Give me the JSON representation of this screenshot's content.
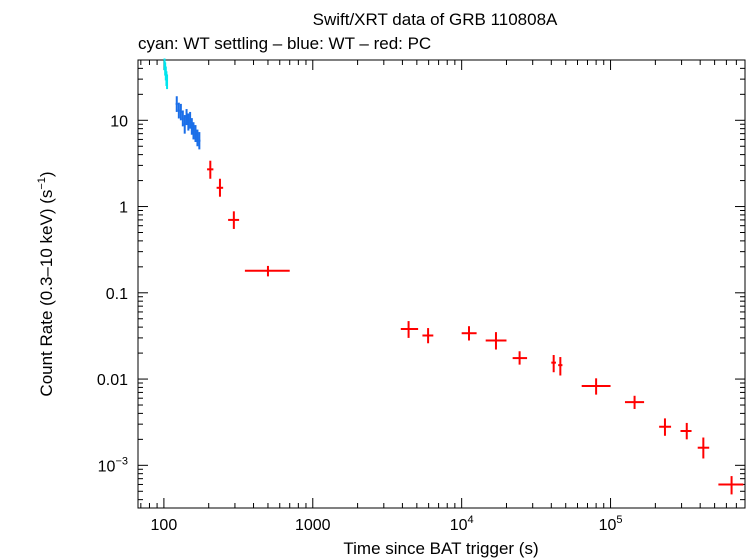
{
  "chart_data": {
    "type": "scatter",
    "title": "Swift/XRT data of GRB 110808A",
    "subtitle": "cyan: WT settling – blue: WT – red: PC",
    "xlabel": "Time since BAT trigger (s)",
    "ylabel_parts": [
      "Count Rate (0.3–10 keV) (s",
      "−1",
      ")"
    ],
    "xscale": "log",
    "yscale": "log",
    "xlim": [
      67,
      800000
    ],
    "ylim": [
      0.00032,
      50
    ],
    "x_ticks": [
      {
        "value": 100,
        "label": "100"
      },
      {
        "value": 1000,
        "label": "1000"
      },
      {
        "value": 10000,
        "base": "10",
        "exp": "4"
      },
      {
        "value": 100000,
        "base": "10",
        "exp": "5"
      }
    ],
    "y_ticks": [
      {
        "value": 10,
        "label": "10"
      },
      {
        "value": 1,
        "label": "1"
      },
      {
        "value": 0.1,
        "label": "0.1"
      },
      {
        "value": 0.01,
        "label": "0.01"
      },
      {
        "value": 0.001,
        "base": "10",
        "exp": "−3"
      }
    ],
    "series": [
      {
        "name": "WT settling",
        "color": "#00e5ee",
        "points": [
          {
            "x": 101,
            "xlo": 100.5,
            "xhi": 101.5,
            "y": 45,
            "ylo": 38,
            "yhi": 52
          },
          {
            "x": 102,
            "xlo": 101.5,
            "xhi": 102.5,
            "y": 40,
            "ylo": 33,
            "yhi": 47
          },
          {
            "x": 103,
            "xlo": 102.5,
            "xhi": 103.5,
            "y": 35,
            "ylo": 29,
            "yhi": 42
          },
          {
            "x": 104,
            "xlo": 103.5,
            "xhi": 104.5,
            "y": 31,
            "ylo": 25,
            "yhi": 37
          },
          {
            "x": 105,
            "xlo": 104.5,
            "xhi": 105.5,
            "y": 28,
            "ylo": 23,
            "yhi": 34
          }
        ]
      },
      {
        "name": "WT",
        "color": "#1a6ee8",
        "points": [
          {
            "x": 122,
            "xlo": 120,
            "xhi": 124,
            "y": 15.5,
            "ylo": 12.5,
            "yhi": 19
          },
          {
            "x": 126,
            "xlo": 124,
            "xhi": 128,
            "y": 13,
            "ylo": 10.5,
            "yhi": 16
          },
          {
            "x": 130,
            "xlo": 128,
            "xhi": 132,
            "y": 12.5,
            "ylo": 10,
            "yhi": 15.5
          },
          {
            "x": 134,
            "xlo": 132,
            "xhi": 136,
            "y": 10.5,
            "ylo": 8.5,
            "yhi": 13
          },
          {
            "x": 138,
            "xlo": 136,
            "xhi": 140,
            "y": 9,
            "ylo": 7,
            "yhi": 11.5
          },
          {
            "x": 142,
            "xlo": 140,
            "xhi": 144,
            "y": 11,
            "ylo": 8.8,
            "yhi": 13.5
          },
          {
            "x": 146,
            "xlo": 144,
            "xhi": 148,
            "y": 9.5,
            "ylo": 7.6,
            "yhi": 12
          },
          {
            "x": 150,
            "xlo": 148,
            "xhi": 152,
            "y": 10,
            "ylo": 8,
            "yhi": 12.5
          },
          {
            "x": 154,
            "xlo": 152,
            "xhi": 156,
            "y": 8.5,
            "ylo": 6.8,
            "yhi": 10.6
          },
          {
            "x": 158,
            "xlo": 156,
            "xhi": 160,
            "y": 7.5,
            "ylo": 6,
            "yhi": 9.5
          },
          {
            "x": 163,
            "xlo": 160,
            "xhi": 166,
            "y": 7,
            "ylo": 5.6,
            "yhi": 8.8
          },
          {
            "x": 168,
            "xlo": 166,
            "xhi": 170,
            "y": 6.2,
            "ylo": 5,
            "yhi": 7.8
          },
          {
            "x": 173,
            "xlo": 170,
            "xhi": 176,
            "y": 5.8,
            "ylo": 4.6,
            "yhi": 7.3
          }
        ]
      },
      {
        "name": "PC",
        "color": "#ff0000",
        "points": [
          {
            "x": 205,
            "xlo": 195,
            "xhi": 215,
            "y": 2.7,
            "ylo": 2.1,
            "yhi": 3.4
          },
          {
            "x": 238,
            "xlo": 226,
            "xhi": 250,
            "y": 1.65,
            "ylo": 1.3,
            "yhi": 2.1
          },
          {
            "x": 295,
            "xlo": 270,
            "xhi": 320,
            "y": 0.7,
            "ylo": 0.55,
            "yhi": 0.88
          },
          {
            "x": 500,
            "xlo": 350,
            "xhi": 700,
            "y": 0.18,
            "ylo": 0.155,
            "yhi": 0.205
          },
          {
            "x": 4400,
            "xlo": 3900,
            "xhi": 5100,
            "y": 0.038,
            "ylo": 0.03,
            "yhi": 0.047
          },
          {
            "x": 5950,
            "xlo": 5450,
            "xhi": 6450,
            "y": 0.032,
            "ylo": 0.026,
            "yhi": 0.039
          },
          {
            "x": 11200,
            "xlo": 10000,
            "xhi": 12600,
            "y": 0.034,
            "ylo": 0.028,
            "yhi": 0.041
          },
          {
            "x": 17000,
            "xlo": 14500,
            "xhi": 20000,
            "y": 0.028,
            "ylo": 0.022,
            "yhi": 0.035
          },
          {
            "x": 24500,
            "xlo": 22000,
            "xhi": 27500,
            "y": 0.0175,
            "ylo": 0.0147,
            "yhi": 0.021
          },
          {
            "x": 41500,
            "xlo": 40000,
            "xhi": 43000,
            "y": 0.0155,
            "ylo": 0.012,
            "yhi": 0.019
          },
          {
            "x": 46000,
            "xlo": 44500,
            "xhi": 47500,
            "y": 0.0145,
            "ylo": 0.011,
            "yhi": 0.018
          },
          {
            "x": 80000,
            "xlo": 64000,
            "xhi": 100000,
            "y": 0.0083,
            "ylo": 0.0066,
            "yhi": 0.0102
          },
          {
            "x": 145000,
            "xlo": 125000,
            "xhi": 168000,
            "y": 0.0054,
            "ylo": 0.0045,
            "yhi": 0.0064
          },
          {
            "x": 232000,
            "xlo": 212000,
            "xhi": 255000,
            "y": 0.0028,
            "ylo": 0.0022,
            "yhi": 0.0035
          },
          {
            "x": 325000,
            "xlo": 295000,
            "xhi": 350000,
            "y": 0.0025,
            "ylo": 0.002,
            "yhi": 0.0031
          },
          {
            "x": 420000,
            "xlo": 385000,
            "xhi": 460000,
            "y": 0.0016,
            "ylo": 0.0012,
            "yhi": 0.0021
          },
          {
            "x": 650000,
            "xlo": 530000,
            "xhi": 780000,
            "y": 0.0006,
            "ylo": 0.00046,
            "yhi": 0.00075
          }
        ]
      }
    ]
  }
}
